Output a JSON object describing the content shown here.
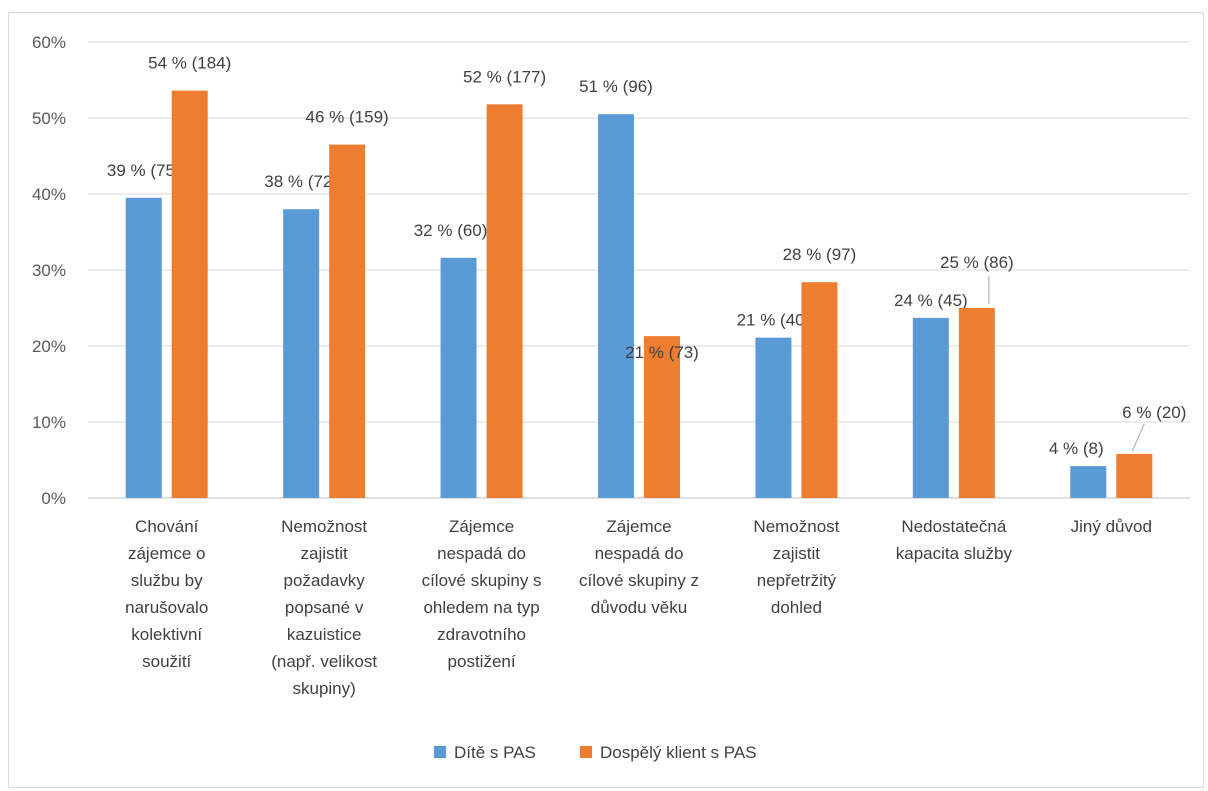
{
  "chart_data": {
    "type": "bar",
    "title": "",
    "xlabel": "",
    "ylabel": "",
    "ylim": [
      0,
      60
    ],
    "yticks": [
      0,
      10,
      20,
      30,
      40,
      50,
      60
    ],
    "ytick_labels": [
      "0%",
      "10%",
      "20%",
      "30%",
      "40%",
      "50%",
      "60%"
    ],
    "grid": true,
    "legend_position": "bottom",
    "categories": [
      "Chování zájemce o službu by narušovalo kolektivní soužití",
      "Nemožnost zajistit požadavky popsané v kazuistice (např. velikost skupiny)",
      "Zájemce nespadá do cílové skupiny s ohledem na typ zdravotního postižení",
      "Zájemce nespadá do cílové skupiny z důvodu věku",
      "Nemožnost zajistit nepřetržitý dohled",
      "Nedostatečná kapacita služby",
      "Jiný důvod"
    ],
    "category_lines": [
      [
        "Chování",
        "zájemce o",
        "službu by",
        "narušovalo",
        "kolektivní",
        "soužití"
      ],
      [
        "Nemožnost",
        "zajistit",
        "požadavky",
        "popsané v",
        "kazuistice",
        "(např. velikost",
        "skupiny)"
      ],
      [
        "Zájemce",
        "nespadá do",
        "cílové skupiny s",
        "ohledem na typ",
        "zdravotního",
        "postižení"
      ],
      [
        "Zájemce",
        "nespadá do",
        "cílové skupiny z",
        "důvodu věku"
      ],
      [
        "Nemožnost",
        "zajistit",
        "nepřetržitý",
        "dohled"
      ],
      [
        "Nedostatečná",
        "kapacita služby"
      ],
      [
        "Jiný důvod"
      ]
    ],
    "series": [
      {
        "name": "Dítě s PAS",
        "color": "#5b9bd5",
        "values": [
          39.5,
          38,
          31.6,
          50.5,
          21.1,
          23.7,
          4.2
        ],
        "labels": [
          "39 % (75)",
          "38 % (72)",
          "32 % (60)",
          "51 % (96)",
          "21 % (40)",
          "24 % (45)",
          "4 % (8)"
        ]
      },
      {
        "name": "Dospělý klient s PAS",
        "color": "#ed7d31",
        "values": [
          53.6,
          46.5,
          51.8,
          21.3,
          28.4,
          25.0,
          5.8
        ],
        "labels": [
          "54 % (184)",
          "46 % (159)",
          "52 % (177)",
          "21 % (73)",
          "28 % (97)",
          "25 % (86)",
          "6 % (20)"
        ]
      }
    ]
  },
  "colors": {
    "grid": "#d9d9d9",
    "axis": "#bfbfbf",
    "text": "#404040"
  }
}
